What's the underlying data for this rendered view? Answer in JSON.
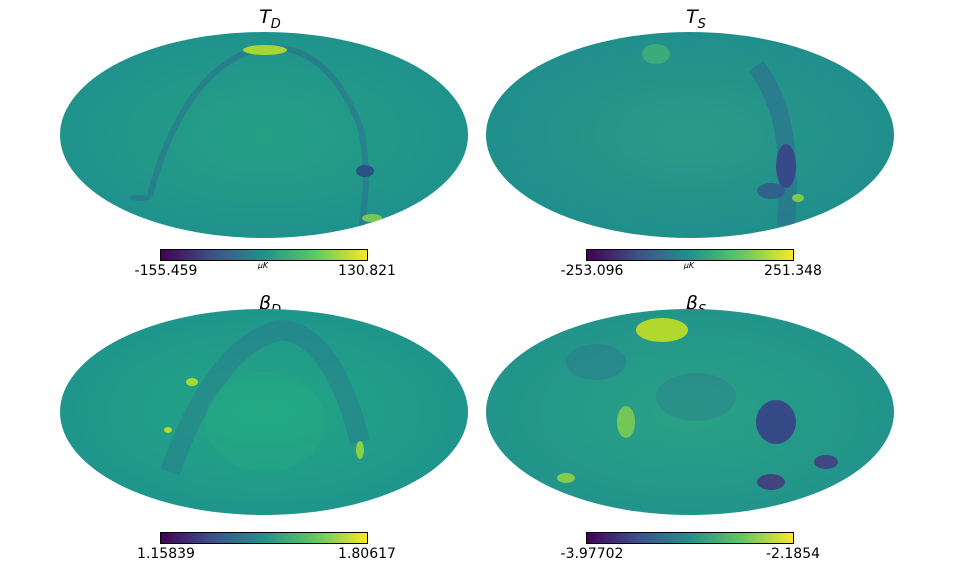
{
  "colormap": [
    "#440154",
    "#3b528b",
    "#21918c",
    "#5ec962",
    "#fde725"
  ],
  "panels": [
    {
      "id": "TD",
      "title_main": "T",
      "title_sub": "D",
      "cbar_min": "-155.459",
      "cbar_max": "130.821",
      "unit": "μK",
      "base": "#23998a"
    },
    {
      "id": "TS",
      "title_main": "T",
      "title_sub": "S",
      "cbar_min": "-253.096",
      "cbar_max": "251.348",
      "unit": "μK",
      "base": "#2a9489"
    },
    {
      "id": "BD",
      "title_main": "β",
      "title_sub": "D",
      "cbar_min": "1.15839",
      "cbar_max": "1.80617",
      "unit": "",
      "base": "#22a385"
    },
    {
      "id": "BS",
      "title_main": "β",
      "title_sub": "S",
      "cbar_min": "-3.97702",
      "cbar_max": "-2.1854",
      "unit": "",
      "base": "#26a283"
    }
  ]
}
